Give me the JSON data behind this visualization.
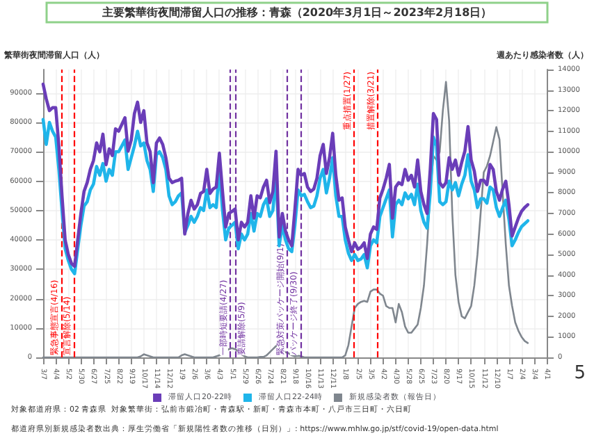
{
  "chart_data": {
    "type": "line",
    "title": "主要繁華街夜間滞留人口の推移：青森（2020年3月1日～2023年2月18日）",
    "ylabel": "繁華街夜間滞留人口（人）",
    "y2label": "週あたり感染者数（人）",
    "x": [
      "2020-03-07",
      "2020-03-14",
      "2020-03-21",
      "2020-03-28",
      "2020-04-04",
      "2020-04-11",
      "2020-04-18",
      "2020-04-25",
      "2020-05-02",
      "2020-05-09",
      "2020-05-16",
      "2020-05-23",
      "2020-05-30",
      "2020-06-06",
      "2020-06-13",
      "2020-06-20",
      "2020-06-27",
      "2020-07-04",
      "2020-07-11",
      "2020-07-18",
      "2020-07-25",
      "2020-08-01",
      "2020-08-08",
      "2020-08-15",
      "2020-08-22",
      "2020-08-29",
      "2020-09-05",
      "2020-09-12",
      "2020-09-19",
      "2020-09-26",
      "2020-10-03",
      "2020-10-10",
      "2020-10-17",
      "2020-10-24",
      "2020-10-31",
      "2020-11-07",
      "2020-11-14",
      "2020-11-21",
      "2020-11-28",
      "2020-12-05",
      "2020-12-12",
      "2020-12-19",
      "2020-12-26",
      "2021-01-02",
      "2021-01-09",
      "2021-01-16",
      "2021-01-23",
      "2021-01-30",
      "2021-02-06",
      "2021-02-13",
      "2021-02-20",
      "2021-02-27",
      "2021-03-06",
      "2021-03-13",
      "2021-03-20",
      "2021-03-27",
      "2021-04-03",
      "2021-04-10",
      "2021-04-17",
      "2021-04-24",
      "2021-05-01",
      "2021-05-08",
      "2021-05-15",
      "2021-05-22",
      "2021-05-29",
      "2021-06-05",
      "2021-06-12",
      "2021-06-19",
      "2021-06-26",
      "2021-07-03",
      "2021-07-10",
      "2021-07-17",
      "2021-07-24",
      "2021-07-31",
      "2021-08-07",
      "2021-08-14",
      "2021-08-21",
      "2021-08-28",
      "2021-09-04",
      "2021-09-11",
      "2021-09-18",
      "2021-09-25",
      "2021-10-02",
      "2021-10-09",
      "2021-10-16",
      "2021-10-23",
      "2021-10-30",
      "2021-11-06",
      "2021-11-13",
      "2021-11-20",
      "2021-11-27",
      "2021-12-04",
      "2021-12-11",
      "2021-12-18",
      "2021-12-25",
      "2022-01-01",
      "2022-01-08",
      "2022-01-15",
      "2022-01-22",
      "2022-01-29",
      "2022-02-05",
      "2022-02-12",
      "2022-02-19",
      "2022-02-26",
      "2022-03-05",
      "2022-03-12",
      "2022-03-19",
      "2022-03-26",
      "2022-04-02",
      "2022-04-09",
      "2022-04-16",
      "2022-04-23",
      "2022-04-30",
      "2022-05-07",
      "2022-05-14",
      "2022-05-21",
      "2022-05-28",
      "2022-06-04",
      "2022-06-11",
      "2022-06-18",
      "2022-06-25",
      "2022-07-02",
      "2022-07-09",
      "2022-07-16",
      "2022-07-23",
      "2022-07-30",
      "2022-08-06",
      "2022-08-13",
      "2022-08-20",
      "2022-08-27",
      "2022-09-03",
      "2022-09-10",
      "2022-09-17",
      "2022-09-24",
      "2022-10-01",
      "2022-10-08",
      "2022-10-15",
      "2022-10-22",
      "2022-10-29",
      "2022-11-05",
      "2022-11-12",
      "2022-11-19",
      "2022-11-26",
      "2022-12-03",
      "2022-12-10",
      "2022-12-17",
      "2022-12-24",
      "2022-12-31",
      "2023-01-07",
      "2023-01-14",
      "2023-01-21",
      "2023-01-28",
      "2023-02-04",
      "2023-02-11",
      "2023-02-18"
    ],
    "series": [
      {
        "name": "滞留人口20-22時",
        "color": "#6a3db8",
        "values": [
          93000,
          88000,
          84000,
          85000,
          85000,
          72000,
          55000,
          40000,
          35000,
          32000,
          31000,
          40000,
          49000,
          56500,
          59500,
          64000,
          67000,
          73000,
          70000,
          76000,
          65600,
          71000,
          68700,
          77800,
          77000,
          79300,
          81600,
          70200,
          74000,
          83000,
          86900,
          80000,
          84000,
          73000,
          70000,
          59500,
          73000,
          74700,
          72500,
          68000,
          61000,
          59500,
          60000,
          60300,
          61000,
          42000,
          49000,
          53500,
          50500,
          52000,
          55800,
          56500,
          64000,
          55800,
          57300,
          58000,
          69500,
          56500,
          44400,
          49000,
          49700,
          50500,
          40000,
          46000,
          44400,
          46000,
          55000,
          47400,
          55000,
          54300,
          58000,
          60300,
          52700,
          56500,
          70200,
          41000,
          49000,
          43000,
          40000,
          38000,
          50500,
          64000,
          62000,
          62600,
          58000,
          56500,
          57300,
          61000,
          68700,
          72500,
          62600,
          68000,
          76300,
          62000,
          53500,
          54300,
          44400,
          40000,
          36000,
          39000,
          36800,
          37500,
          39000,
          33700,
          42000,
          44400,
          43600,
          54300,
          57300,
          61000,
          65700,
          47400,
          58000,
          59500,
          58800,
          64000,
          60300,
          62000,
          58000,
          67200,
          56500,
          52000,
          49000,
          64000,
          83000,
          81000,
          59500,
          58000,
          59500,
          68000,
          64000,
          67200,
          62000,
          66400,
          70200,
          78600,
          67200,
          63400,
          56500,
          60300,
          60300,
          58800,
          65700,
          64000,
          56500,
          53500,
          57300,
          60000,
          52000,
          41300,
          44400,
          47400,
          49700,
          51000,
          52000
        ]
      },
      {
        "name": "滞留人口22-24時",
        "color": "#1fb5ea",
        "values": [
          81000,
          72500,
          80000,
          77000,
          75000,
          64000,
          50000,
          37000,
          33000,
          30000,
          28500,
          37000,
          45000,
          51500,
          53000,
          57000,
          59000,
          65000,
          62000,
          66000,
          60000,
          64000,
          62000,
          70000,
          70000,
          72000,
          74000,
          64000,
          68000,
          72000,
          77000,
          72000,
          73000,
          67000,
          64000,
          56500,
          69000,
          70000,
          68000,
          64000,
          55000,
          52000,
          53000,
          55000,
          56000,
          42500,
          45000,
          48000,
          46000,
          48000,
          51000,
          50000,
          57000,
          51000,
          52000,
          51000,
          64000,
          50000,
          40000,
          44000,
          45000,
          46000,
          37000,
          42000,
          40000,
          42000,
          49000,
          43000,
          49000,
          48000,
          52000,
          54000,
          48000,
          50000,
          62000,
          38000,
          45000,
          40000,
          37000,
          36000,
          45000,
          57000,
          55000,
          55500,
          53000,
          51000,
          51500,
          55000,
          61000,
          64000,
          56000,
          61000,
          68000,
          55000,
          48000,
          48000,
          40000,
          35500,
          33000,
          35000,
          33000,
          33500,
          35000,
          30500,
          38000,
          40000,
          39000,
          48000,
          51000,
          54000,
          57000,
          41000,
          52000,
          53500,
          52000,
          56000,
          54000,
          55500,
          52000,
          59000,
          50000,
          46000,
          44000,
          56000,
          75000,
          72000,
          53000,
          52000,
          53000,
          60000,
          57000,
          59500,
          55000,
          59000,
          62000,
          69000,
          60000,
          57000,
          51000,
          54000,
          54000,
          52500,
          58000,
          57000,
          51000,
          48000,
          51000,
          53500,
          47000,
          38000,
          40000,
          42500,
          44500,
          45500,
          46500
        ]
      },
      {
        "name": "新規感染者数（報告日）",
        "color": "#7f868e",
        "axis": "y2",
        "values": [
          0,
          0,
          0,
          0,
          0,
          0,
          0,
          0,
          0,
          0,
          0,
          0,
          0,
          0,
          0,
          0,
          0,
          0,
          0,
          0,
          0,
          0,
          0,
          0,
          0,
          0,
          0,
          0,
          0,
          0,
          0,
          50,
          150,
          100,
          50,
          0,
          0,
          0,
          0,
          0,
          0,
          0,
          0,
          0,
          100,
          150,
          100,
          50,
          0,
          0,
          0,
          0,
          0,
          0,
          0,
          50,
          100,
          200,
          300,
          400,
          450,
          400,
          300,
          150,
          50,
          0,
          0,
          0,
          0,
          20,
          20,
          100,
          250,
          400,
          550,
          600,
          400,
          250,
          200,
          100,
          50,
          80,
          50,
          0,
          0,
          0,
          0,
          0,
          0,
          0,
          0,
          0,
          0,
          0,
          0,
          0,
          100,
          600,
          1500,
          2400,
          2600,
          2700,
          2750,
          2700,
          3200,
          3300,
          3300,
          3100,
          3000,
          2500,
          2400,
          2400,
          1700,
          2600,
          2200,
          1500,
          1200,
          1200,
          1400,
          1600,
          2400,
          3500,
          5500,
          8000,
          9800,
          9600,
          10000,
          12000,
          13400,
          11500,
          7000,
          4000,
          2700,
          2000,
          1900,
          2200,
          2500,
          3500,
          5000,
          7000,
          9000,
          9300,
          9800,
          10500,
          11200,
          10600,
          8000,
          5500,
          3500,
          2500,
          1700,
          1300,
          1000,
          800,
          700
        ]
      }
    ],
    "xlim": [
      "2020-03-07",
      "2023-04-01"
    ],
    "xticks": [
      {
        "value": "2020-03-07",
        "label": "3/7"
      },
      {
        "value": "2020-04-04",
        "label": "4/4"
      },
      {
        "value": "2020-05-02",
        "label": "5/2"
      },
      {
        "value": "2020-05-30",
        "label": "5/30"
      },
      {
        "value": "2020-06-27",
        "label": "6/27"
      },
      {
        "value": "2020-07-25",
        "label": "7/25"
      },
      {
        "value": "2020-08-22",
        "label": "8/22"
      },
      {
        "value": "2020-09-19",
        "label": "9/19"
      },
      {
        "value": "2020-10-17",
        "label": "10/17"
      },
      {
        "value": "2020-11-14",
        "label": "11/14"
      },
      {
        "value": "2020-12-12",
        "label": "12/12"
      },
      {
        "value": "2021-01-09",
        "label": "1/9"
      },
      {
        "value": "2021-02-06",
        "label": "2/6"
      },
      {
        "value": "2021-03-06",
        "label": "3/6"
      },
      {
        "value": "2021-04-03",
        "label": "4/3"
      },
      {
        "value": "2021-05-01",
        "label": "5/1"
      },
      {
        "value": "2021-05-29",
        "label": "5/29"
      },
      {
        "value": "2021-06-26",
        "label": "6/26"
      },
      {
        "value": "2021-07-24",
        "label": "7/24"
      },
      {
        "value": "2021-08-21",
        "label": "8/21"
      },
      {
        "value": "2021-09-18",
        "label": "9/18"
      },
      {
        "value": "2021-10-16",
        "label": "10/16"
      },
      {
        "value": "2021-11-13",
        "label": "11/13"
      },
      {
        "value": "2021-12-11",
        "label": "12/11"
      },
      {
        "value": "2022-01-08",
        "label": "1/8"
      },
      {
        "value": "2022-02-05",
        "label": "2/5"
      },
      {
        "value": "2022-03-05",
        "label": "3/5"
      },
      {
        "value": "2022-04-02",
        "label": "4/2"
      },
      {
        "value": "2022-04-30",
        "label": "4/30"
      },
      {
        "value": "2022-05-28",
        "label": "5/28"
      },
      {
        "value": "2022-06-25",
        "label": "6/25"
      },
      {
        "value": "2022-07-23",
        "label": "7/23"
      },
      {
        "value": "2022-08-20",
        "label": "8/20"
      },
      {
        "value": "2022-09-17",
        "label": "9/17"
      },
      {
        "value": "2022-10-15",
        "label": "10/15"
      },
      {
        "value": "2022-11-12",
        "label": "11/12"
      },
      {
        "value": "2022-12-10",
        "label": "12/10"
      },
      {
        "value": "2023-01-07",
        "label": "1/7"
      },
      {
        "value": "2023-02-04",
        "label": "2/4"
      },
      {
        "value": "2023-03-04",
        "label": "3/4"
      },
      {
        "value": "2023-04-01",
        "label": "4/1"
      }
    ],
    "ylim": [
      0,
      98000
    ],
    "yticks": [
      0,
      10000,
      20000,
      30000,
      40000,
      50000,
      60000,
      70000,
      80000,
      90000
    ],
    "y2lim": [
      0,
      14000
    ],
    "y2ticks": [
      0,
      1000,
      2000,
      3000,
      4000,
      5000,
      6000,
      7000,
      8000,
      9000,
      10000,
      11000,
      12000,
      13000,
      14000
    ],
    "ref_lines": [
      {
        "axis": "x",
        "value": "2020-04-16",
        "label": "緊急事態宣言(4/16)",
        "color": "#ff0000",
        "line_style": "dashed"
      },
      {
        "axis": "x",
        "value": "2020-05-14",
        "label": "宣言解除(5/14)",
        "color": "#ff0000",
        "line_style": "dashed"
      },
      {
        "axis": "x",
        "value": "2021-04-27",
        "label": "一部時短要請(4/27)",
        "color": "#7030a0",
        "line_style": "dashed"
      },
      {
        "axis": "x",
        "value": "2021-05-09",
        "label": "要請解除(5/9)",
        "color": "#7030a0",
        "line_style": "dashed"
      },
      {
        "axis": "x",
        "value": "2021-09-01",
        "label": "緊急対策パッケージ開始(9/1)",
        "color": "#7030a0",
        "line_style": "dashed"
      },
      {
        "axis": "x",
        "value": "2021-09-30",
        "label": "パッケージ終了(9/30)",
        "color": "#7030a0",
        "line_style": "dashed"
      },
      {
        "axis": "x",
        "value": "2022-01-27",
        "label": "重点措置(1/27)",
        "color": "#ff0000",
        "line_style": "dashed"
      },
      {
        "axis": "x",
        "value": "2022-03-21",
        "label": "措置解除(3/21)",
        "color": "#ff0000",
        "line_style": "dashed"
      }
    ],
    "annotations": [
      "対象都道府県：02 青森県",
      "対象繁華街：弘前市鍛冶町・青森駅・新町・青森市本町・八戸市三日町・六日町",
      "都道府県別新規感染者数出典：厚生労働省「新規陽性者数の推移（日別）」: https://www.mhlw.go.jp/stf/covid-19/open-data.html",
      "5"
    ],
    "grid": true,
    "legend": "bottom",
    "marker": "none",
    "line_style": "solid"
  }
}
